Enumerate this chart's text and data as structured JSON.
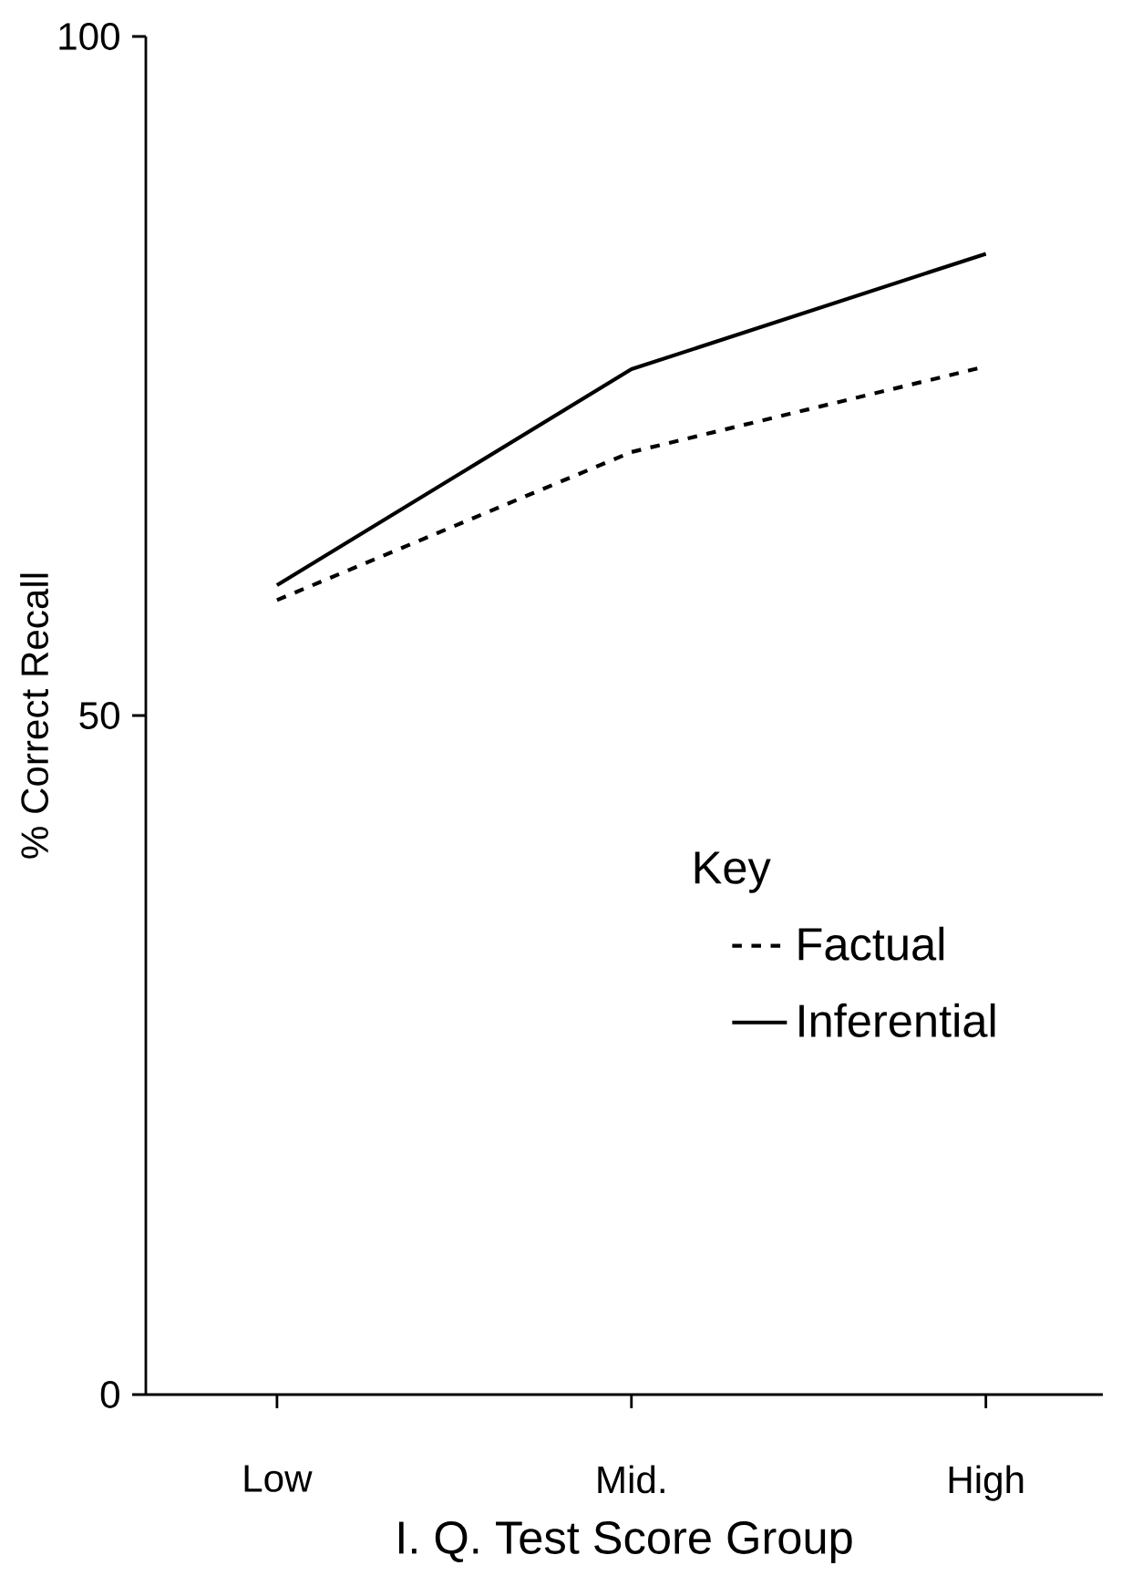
{
  "chart_data": {
    "type": "line",
    "xlabel": "I. Q. Test Score Group",
    "ylabel": "% Correct Recall",
    "categories": [
      "Low",
      "Mid.",
      "High"
    ],
    "series": [
      {
        "name": "Factual",
        "color": "#000000",
        "line_style": "dashed",
        "values": [
          58.5,
          69.4,
          75.7
        ]
      },
      {
        "name": "Inferential",
        "color": "#000000",
        "line_style": "solid",
        "values": [
          59.6,
          75.5,
          84.0
        ]
      }
    ],
    "ylim": [
      0,
      100
    ],
    "yticks": [
      0,
      50,
      100
    ],
    "legend": "right",
    "legend_title": "Key",
    "grid": false
  }
}
